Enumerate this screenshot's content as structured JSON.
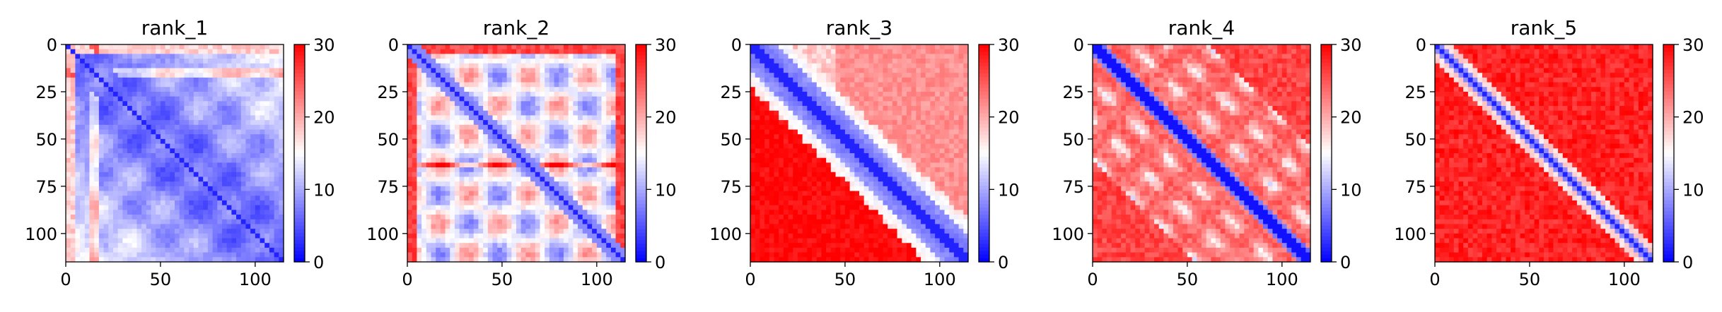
{
  "chart_data": [
    {
      "type": "heatmap",
      "title": "rank_1",
      "pattern": "mostly-blue-periodic-blocks",
      "xlim": [
        0,
        115
      ],
      "ylim": [
        115,
        0
      ],
      "x_ticks": [
        0,
        50,
        100
      ],
      "y_ticks": [
        0,
        25,
        50,
        75,
        100
      ],
      "colorbar": {
        "min": 0,
        "max": 30,
        "ticks": [
          0,
          10,
          20,
          30
        ],
        "colormap": "bwr"
      }
    },
    {
      "type": "heatmap",
      "title": "rank_2",
      "pattern": "blue-blocks-red-stripes",
      "xlim": [
        0,
        115
      ],
      "ylim": [
        115,
        0
      ],
      "x_ticks": [
        0,
        50,
        100
      ],
      "y_ticks": [
        0,
        25,
        50,
        75,
        100
      ],
      "colorbar": {
        "min": 0,
        "max": 30,
        "ticks": [
          0,
          10,
          20,
          30
        ],
        "colormap": "bwr"
      }
    },
    {
      "type": "heatmap",
      "title": "rank_3",
      "pattern": "wide-blue-diagonal-red-background",
      "xlim": [
        0,
        115
      ],
      "ylim": [
        115,
        0
      ],
      "x_ticks": [
        0,
        50,
        100
      ],
      "y_ticks": [
        0,
        25,
        50,
        75,
        100
      ],
      "colorbar": {
        "min": 0,
        "max": 30,
        "ticks": [
          0,
          10,
          20,
          30
        ],
        "colormap": "bwr"
      }
    },
    {
      "type": "heatmap",
      "title": "rank_4",
      "pattern": "blue-diagonal-with-parallel-bands",
      "xlim": [
        0,
        115
      ],
      "ylim": [
        115,
        0
      ],
      "x_ticks": [
        0,
        50,
        100
      ],
      "y_ticks": [
        0,
        25,
        50,
        75,
        100
      ],
      "colorbar": {
        "min": 0,
        "max": 30,
        "ticks": [
          0,
          10,
          20,
          30
        ],
        "colormap": "bwr"
      }
    },
    {
      "type": "heatmap",
      "title": "rank_5",
      "pattern": "narrow-blue-diagonal-red-background",
      "xlim": [
        0,
        115
      ],
      "ylim": [
        115,
        0
      ],
      "x_ticks": [
        0,
        50,
        100
      ],
      "y_ticks": [
        0,
        25,
        50,
        75,
        100
      ],
      "colorbar": {
        "min": 0,
        "max": 30,
        "ticks": [
          0,
          10,
          20,
          30
        ],
        "colormap": "bwr"
      }
    }
  ]
}
